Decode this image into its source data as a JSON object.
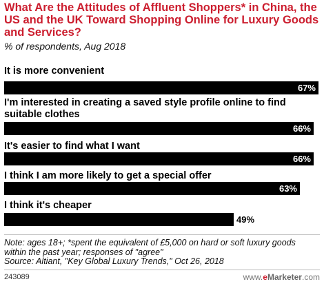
{
  "header": {
    "title": "What Are the Attitudes of Affluent Shoppers* in China, the US and the UK Toward Shopping Online for Luxury Goods and Services?",
    "subtitle": "% of respondents, Aug 2018"
  },
  "chart_data": {
    "type": "bar",
    "orientation": "horizontal",
    "categories": [
      "It is more convenient",
      "I'm interested in creating a saved style profile online to find suitable clothes",
      "It's easier to find what I want",
      "I think I am more likely to get a special offer",
      "I think it's cheaper"
    ],
    "values": [
      67,
      66,
      66,
      63,
      49
    ],
    "value_labels": [
      "67%",
      "66%",
      "66%",
      "63%",
      "49%"
    ],
    "unit": "%",
    "xlim": [
      0,
      67
    ],
    "bar_color": "#000000",
    "grid": false
  },
  "footer": {
    "note_line1": "Note: ages 18+; *spent the equivalent of £5,000 on hard or soft luxury goods within the past year; responses of \"agree\"",
    "source": "Source: Altiant, \"Key Global Luxury Trends,\" Oct 26, 2018",
    "chart_id": "243089",
    "logo_prefix": "www.",
    "logo_e": "e",
    "logo_brand": "Marketer",
    "logo_suffix": ".com"
  },
  "colors": {
    "title": "#cc1e2f",
    "bar": "#000000",
    "logo_e": "#cc1e2f"
  }
}
